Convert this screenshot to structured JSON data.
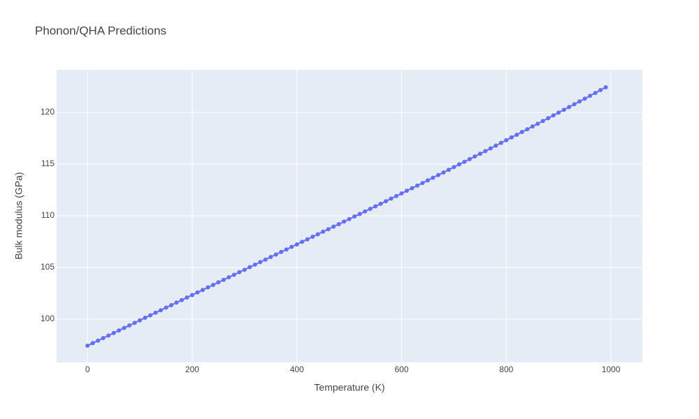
{
  "chart_data": {
    "type": "line",
    "title": "Phonon/QHA Predictions",
    "x_label": "Temperature (K)",
    "y_label": "Bulk modulus (GPa)",
    "x": [
      0,
      10,
      20,
      30,
      40,
      50,
      60,
      70,
      80,
      90,
      100,
      110,
      120,
      130,
      140,
      150,
      160,
      170,
      180,
      190,
      200,
      210,
      220,
      230,
      240,
      250,
      260,
      270,
      280,
      290,
      300,
      310,
      320,
      330,
      340,
      350,
      360,
      370,
      380,
      390,
      400,
      410,
      420,
      430,
      440,
      450,
      460,
      470,
      480,
      490,
      500,
      510,
      520,
      530,
      540,
      550,
      560,
      570,
      580,
      590,
      600,
      610,
      620,
      630,
      640,
      650,
      660,
      670,
      680,
      690,
      700,
      710,
      720,
      730,
      740,
      750,
      760,
      770,
      780,
      790,
      800,
      810,
      820,
      830,
      840,
      850,
      860,
      870,
      880,
      890,
      900,
      910,
      920,
      930,
      940,
      950,
      960,
      970,
      980,
      990
    ],
    "series": [
      {
        "color": "#636efa",
        "values": [
          97.43,
          97.68,
          97.92,
          98.17,
          98.41,
          98.66,
          98.9,
          99.15,
          99.39,
          99.64,
          99.88,
          100.13,
          100.37,
          100.62,
          100.86,
          101.11,
          101.35,
          101.6,
          101.84,
          102.09,
          102.33,
          102.58,
          102.82,
          103.07,
          103.31,
          103.56,
          103.8,
          104.05,
          104.29,
          104.54,
          104.78,
          105.03,
          105.27,
          105.52,
          105.76,
          106.01,
          106.25,
          106.5,
          106.74,
          106.99,
          107.23,
          107.48,
          107.72,
          107.97,
          108.21,
          108.46,
          108.7,
          108.95,
          109.19,
          109.44,
          109.68,
          109.93,
          110.17,
          110.42,
          110.67,
          110.91,
          111.16,
          111.41,
          111.66,
          111.91,
          112.16,
          112.42,
          112.67,
          112.92,
          113.17,
          113.43,
          113.68,
          113.94,
          114.19,
          114.45,
          114.71,
          114.97,
          115.22,
          115.48,
          115.74,
          116.0,
          116.26,
          116.52,
          116.79,
          117.05,
          117.31,
          117.58,
          117.84,
          118.11,
          118.37,
          118.64,
          118.9,
          119.17,
          119.44,
          119.71,
          119.98,
          120.25,
          120.52,
          120.79,
          121.06,
          121.33,
          121.61,
          121.88,
          122.16,
          122.43
        ]
      }
    ],
    "xlim": [
      -59,
      1060
    ],
    "ylim": [
      95.81,
      124.12
    ],
    "xticks": [
      0,
      200,
      400,
      600,
      800,
      1000
    ],
    "yticks": [
      100,
      105,
      110,
      115,
      120
    ],
    "grid": true
  }
}
